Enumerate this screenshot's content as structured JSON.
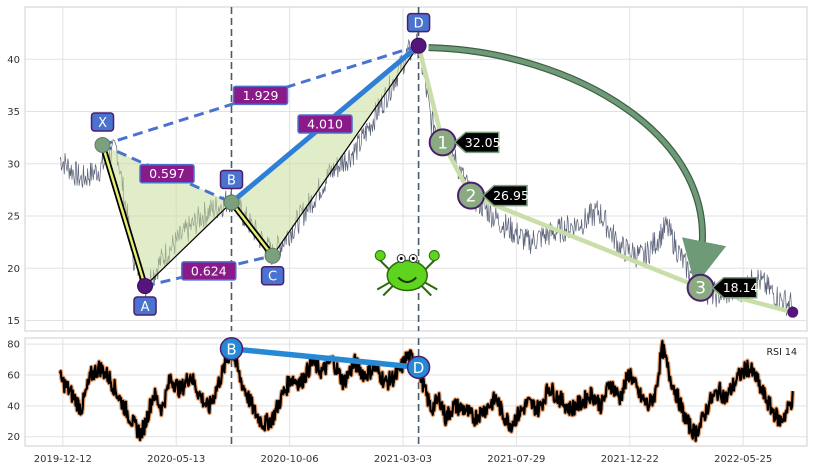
{
  "chart_data": {
    "type": "line",
    "title": "",
    "x_tick_labels": [
      "2019-12-12",
      "2020-05-13",
      "2020-10-06",
      "2021-03-03",
      "2021-07-29",
      "2021-12-22",
      "2022-05-25"
    ],
    "price_panel": {
      "ylim": [
        14,
        45
      ],
      "y_ticks": [
        "15",
        "20",
        "25",
        "30",
        "35",
        "40"
      ],
      "series_color": "#5a6178",
      "price_anchors": [
        [
          0,
          30.5
        ],
        [
          15,
          28.5
        ],
        [
          28,
          29.5
        ],
        [
          40,
          31.5
        ],
        [
          52,
          21.0
        ],
        [
          60,
          18.3
        ],
        [
          75,
          21.5
        ],
        [
          100,
          25.0
        ],
        [
          121,
          26.7
        ],
        [
          135,
          24.0
        ],
        [
          150,
          21.3
        ],
        [
          168,
          24.5
        ],
        [
          190,
          29.0
        ],
        [
          210,
          31.5
        ],
        [
          230,
          36.5
        ],
        [
          245,
          40.5
        ],
        [
          253,
          41.4
        ],
        [
          262,
          34.0
        ],
        [
          270,
          33.0
        ],
        [
          290,
          27.0
        ],
        [
          310,
          24.5
        ],
        [
          330,
          22.5
        ],
        [
          350,
          23.5
        ],
        [
          370,
          24.5
        ],
        [
          380,
          25.5
        ],
        [
          395,
          22.0
        ],
        [
          412,
          21.0
        ],
        [
          428,
          24.0
        ],
        [
          440,
          20.5
        ],
        [
          452,
          18.1
        ],
        [
          462,
          17.5
        ],
        [
          478,
          17.8
        ],
        [
          492,
          19.0
        ],
        [
          508,
          17.0
        ],
        [
          517,
          16.5
        ]
      ],
      "harmonic_pattern": {
        "name": "crab",
        "points": [
          {
            "label": "X",
            "x": 30,
            "y": 31.8
          },
          {
            "label": "A",
            "x": 60,
            "y": 18.3
          },
          {
            "label": "B",
            "x": 121,
            "y": 26.3
          },
          {
            "label": "C",
            "x": 150,
            "y": 21.2
          },
          {
            "label": "D",
            "x": 253,
            "y": 41.3
          }
        ],
        "ratios": [
          {
            "label": "0.597",
            "from": "X",
            "to": "B"
          },
          {
            "label": "0.624",
            "from": "A",
            "to": "C"
          },
          {
            "label": "1.929",
            "from": "X",
            "to": "D"
          },
          {
            "label": "4.010",
            "from": "B",
            "to": "D"
          }
        ],
        "fill_color": "#c8dc9a",
        "line_color": "#2f7fd6"
      },
      "targets": [
        {
          "label": "1",
          "value": "32.05",
          "x": 270,
          "y": 32.05
        },
        {
          "label": "2",
          "value": "26.95",
          "x": 290,
          "y": 26.95
        },
        {
          "label": "3",
          "value": "18.14",
          "x": 452,
          "y": 18.14
        }
      ],
      "target_path_end": {
        "x": 517,
        "y": 15.8
      }
    },
    "rsi_panel": {
      "label": "RSI 14",
      "ylim": [
        14,
        84
      ],
      "y_ticks": [
        "20",
        "40",
        "60",
        "80"
      ],
      "divergence": {
        "from": {
          "label": "B",
          "x": 121,
          "y": 77
        },
        "to": {
          "label": "D",
          "x": 253,
          "y": 65
        }
      },
      "series_color": "#000000",
      "edge_color": "#e8a070",
      "rsi_anchors": [
        [
          0,
          58
        ],
        [
          8,
          48
        ],
        [
          15,
          38
        ],
        [
          22,
          60
        ],
        [
          28,
          65
        ],
        [
          35,
          58
        ],
        [
          42,
          45
        ],
        [
          48,
          35
        ],
        [
          52,
          28
        ],
        [
          57,
          22
        ],
        [
          60,
          28
        ],
        [
          66,
          48
        ],
        [
          72,
          38
        ],
        [
          78,
          58
        ],
        [
          85,
          50
        ],
        [
          92,
          60
        ],
        [
          98,
          48
        ],
        [
          105,
          38
        ],
        [
          112,
          55
        ],
        [
          118,
          70
        ],
        [
          121,
          77
        ],
        [
          127,
          58
        ],
        [
          133,
          45
        ],
        [
          138,
          35
        ],
        [
          144,
          28
        ],
        [
          150,
          32
        ],
        [
          156,
          45
        ],
        [
          163,
          58
        ],
        [
          170,
          55
        ],
        [
          178,
          68
        ],
        [
          185,
          62
        ],
        [
          192,
          70
        ],
        [
          200,
          55
        ],
        [
          208,
          68
        ],
        [
          215,
          60
        ],
        [
          222,
          65
        ],
        [
          230,
          55
        ],
        [
          238,
          60
        ],
        [
          245,
          72
        ],
        [
          250,
          70
        ],
        [
          253,
          65
        ],
        [
          258,
          48
        ],
        [
          262,
          38
        ],
        [
          268,
          45
        ],
        [
          272,
          32
        ],
        [
          278,
          40
        ],
        [
          285,
          38
        ],
        [
          292,
          32
        ],
        [
          300,
          38
        ],
        [
          308,
          45
        ],
        [
          312,
          35
        ],
        [
          318,
          28
        ],
        [
          324,
          35
        ],
        [
          330,
          42
        ],
        [
          338,
          38
        ],
        [
          345,
          52
        ],
        [
          352,
          45
        ],
        [
          360,
          38
        ],
        [
          368,
          42
        ],
        [
          375,
          48
        ],
        [
          382,
          40
        ],
        [
          388,
          55
        ],
        [
          395,
          45
        ],
        [
          402,
          62
        ],
        [
          408,
          48
        ],
        [
          415,
          40
        ],
        [
          420,
          48
        ],
        [
          425,
          78
        ],
        [
          430,
          60
        ],
        [
          436,
          45
        ],
        [
          442,
          30
        ],
        [
          448,
          22
        ],
        [
          452,
          28
        ],
        [
          458,
          42
        ],
        [
          465,
          50
        ],
        [
          470,
          45
        ],
        [
          478,
          58
        ],
        [
          485,
          65
        ],
        [
          490,
          60
        ],
        [
          495,
          50
        ],
        [
          502,
          38
        ],
        [
          508,
          30
        ],
        [
          512,
          35
        ],
        [
          517,
          45
        ]
      ]
    },
    "vertical_markers": [
      {
        "x": 121,
        "label": "B"
      },
      {
        "x": 253,
        "label": "D"
      }
    ],
    "x_domain": [
      0,
      520
    ],
    "grid": true,
    "colors": {
      "pattern_node": "#4a72cf",
      "ratio_box": "#8a1a8a",
      "target_circle": "#8aab82",
      "target_label_bg": "#000000",
      "endpoint_dot": "#55157a",
      "arc": "#6e9a78",
      "crab_icon": "#5ed41f"
    }
  }
}
